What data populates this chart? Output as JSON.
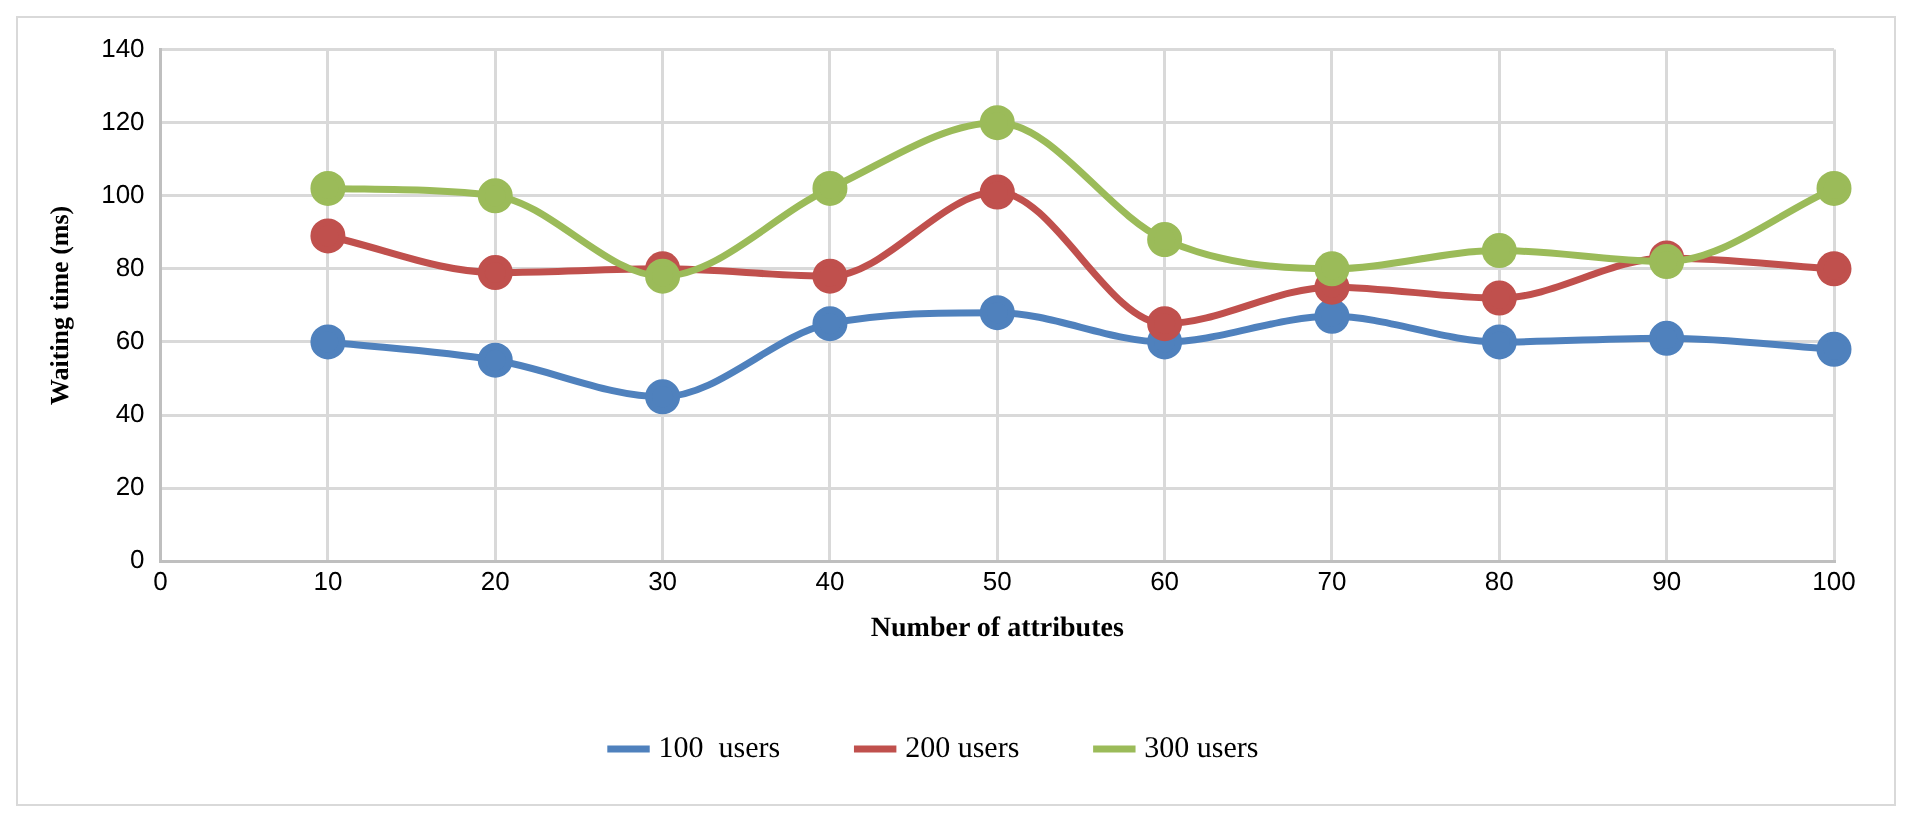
{
  "chart_data": {
    "type": "line",
    "xlabel": "Number of attributes",
    "ylabel": "Waiting time (ms)",
    "x": [
      10,
      20,
      30,
      40,
      50,
      60,
      70,
      80,
      90,
      100
    ],
    "xlim": [
      0,
      100
    ],
    "xticks": [
      0,
      10,
      20,
      30,
      40,
      50,
      60,
      70,
      80,
      90,
      100
    ],
    "ylim": [
      0,
      140
    ],
    "yticks": [
      0,
      20,
      40,
      60,
      80,
      100,
      120,
      140
    ],
    "grid": true,
    "legend": "bottom",
    "marker": "circle",
    "line_style": "solid",
    "series": [
      {
        "name": "100  users",
        "color": "#4f81bd",
        "values": [
          60,
          55,
          45,
          65,
          68,
          60,
          67,
          60,
          61,
          58
        ]
      },
      {
        "name": "200 users",
        "color": "#c0504d",
        "values": [
          89,
          79,
          80,
          78,
          101,
          65,
          75,
          72,
          83,
          80
        ]
      },
      {
        "name": "300 users",
        "color": "#9bbb59",
        "values": [
          102,
          100,
          78,
          102,
          120,
          88,
          80,
          85,
          82,
          102
        ]
      }
    ]
  }
}
